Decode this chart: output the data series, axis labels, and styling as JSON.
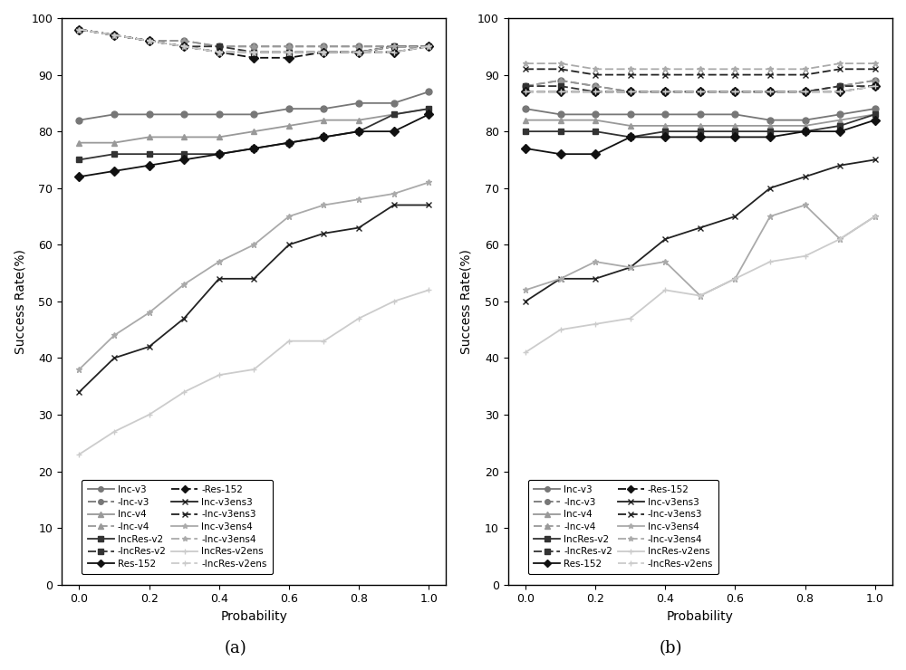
{
  "x": [
    0,
    0.1,
    0.2,
    0.3,
    0.4,
    0.5,
    0.6,
    0.7,
    0.8,
    0.9,
    1.0
  ],
  "plot_a": {
    "solid": {
      "Inc-v3": [
        82,
        83,
        83,
        83,
        83,
        83,
        84,
        84,
        85,
        85,
        87
      ],
      "Inc-v4": [
        78,
        78,
        79,
        79,
        79,
        80,
        81,
        82,
        82,
        83,
        84
      ],
      "IncRes-v2": [
        75,
        76,
        76,
        76,
        76,
        77,
        78,
        79,
        80,
        83,
        84
      ],
      "Res-152": [
        72,
        73,
        74,
        75,
        76,
        77,
        78,
        79,
        80,
        80,
        83
      ],
      "Inc-v3ens3": [
        34,
        40,
        42,
        47,
        54,
        54,
        60,
        62,
        63,
        67,
        67
      ],
      "Inc-v3ens4": [
        38,
        44,
        48,
        53,
        57,
        60,
        65,
        67,
        68,
        69,
        71
      ],
      "IncRes-v2ens": [
        23,
        27,
        30,
        34,
        37,
        38,
        43,
        43,
        47,
        50,
        52
      ]
    },
    "dashed": {
      "-Inc-v3": [
        98,
        97,
        96,
        96,
        95,
        95,
        95,
        95,
        95,
        95,
        95
      ],
      "-Inc-v4": [
        98,
        97,
        96,
        96,
        95,
        95,
        95,
        95,
        95,
        95,
        95
      ],
      "-IncRes-v2": [
        98,
        97,
        96,
        95,
        95,
        94,
        94,
        94,
        94,
        95,
        95
      ],
      "-Res-152": [
        98,
        97,
        96,
        95,
        94,
        93,
        93,
        94,
        94,
        94,
        95
      ],
      "-Inc-v3ens3": [
        98,
        97,
        96,
        95,
        94,
        94,
        94,
        94,
        94,
        95,
        95
      ],
      "-Inc-v3ens4": [
        98,
        97,
        96,
        95,
        94,
        94,
        94,
        94,
        94,
        95,
        95
      ],
      "-IncRes-v2ens": [
        98,
        97,
        96,
        95,
        94,
        94,
        94,
        94,
        94,
        94,
        95
      ]
    }
  },
  "plot_b": {
    "solid": {
      "Inc-v3": [
        84,
        83,
        83,
        83,
        83,
        83,
        83,
        82,
        82,
        83,
        84
      ],
      "Inc-v4": [
        82,
        82,
        82,
        81,
        81,
        81,
        81,
        81,
        81,
        82,
        83
      ],
      "IncRes-v2": [
        80,
        80,
        80,
        79,
        80,
        80,
        80,
        80,
        80,
        81,
        83
      ],
      "Res-152": [
        77,
        76,
        76,
        79,
        79,
        79,
        79,
        79,
        80,
        80,
        82
      ],
      "Inc-v3ens3": [
        50,
        54,
        54,
        56,
        61,
        63,
        65,
        70,
        72,
        74,
        75
      ],
      "Inc-v3ens4": [
        52,
        54,
        57,
        56,
        57,
        51,
        54,
        65,
        67,
        61,
        65
      ],
      "IncRes-v2ens": [
        41,
        45,
        46,
        47,
        52,
        51,
        54,
        57,
        58,
        61,
        65
      ]
    },
    "dashed": {
      "-Inc-v3": [
        88,
        89,
        88,
        87,
        87,
        87,
        87,
        87,
        87,
        88,
        89
      ],
      "-Inc-v4": [
        88,
        89,
        88,
        87,
        87,
        87,
        87,
        87,
        87,
        88,
        89
      ],
      "-IncRes-v2": [
        88,
        88,
        87,
        87,
        87,
        87,
        87,
        87,
        87,
        88,
        88
      ],
      "-Res-152": [
        87,
        87,
        87,
        87,
        87,
        87,
        87,
        87,
        87,
        87,
        88
      ],
      "-Inc-v3ens3": [
        91,
        91,
        90,
        90,
        90,
        90,
        90,
        90,
        90,
        91,
        91
      ],
      "-Inc-v3ens4": [
        92,
        92,
        91,
        91,
        91,
        91,
        91,
        91,
        91,
        92,
        92
      ],
      "-IncRes-v2ens": [
        87,
        87,
        87,
        87,
        87,
        87,
        87,
        87,
        87,
        87,
        88
      ]
    }
  },
  "solid_colors": {
    "Inc-v3": "#777777",
    "Inc-v4": "#999999",
    "IncRes-v2": "#333333",
    "Res-152": "#111111",
    "Inc-v3ens3": "#222222",
    "Inc-v3ens4": "#aaaaaa",
    "IncRes-v2ens": "#cccccc"
  },
  "dashed_colors": {
    "-Inc-v3": "#777777",
    "-Inc-v4": "#999999",
    "-IncRes-v2": "#333333",
    "-Res-152": "#111111",
    "-Inc-v3ens3": "#222222",
    "-Inc-v3ens4": "#aaaaaa",
    "-IncRes-v2ens": "#cccccc"
  },
  "markers_solid": {
    "Inc-v3": "o",
    "Inc-v4": "^",
    "IncRes-v2": "s",
    "Res-152": "D",
    "Inc-v3ens3": "x",
    "Inc-v3ens4": "*",
    "IncRes-v2ens": "+"
  },
  "markers_dashed": {
    "-Inc-v3": "o",
    "-Inc-v4": "^",
    "-IncRes-v2": "s",
    "-Res-152": "D",
    "-Inc-v3ens3": "x",
    "-Inc-v3ens4": "*",
    "-IncRes-v2ens": "+"
  },
  "ylim": [
    0,
    100
  ],
  "yticks": [
    0,
    10,
    20,
    30,
    40,
    50,
    60,
    70,
    80,
    90,
    100
  ],
  "xticks": [
    0,
    0.2,
    0.4,
    0.6,
    0.8,
    1.0
  ],
  "xlabel": "Probability",
  "ylabel": "Success Rate(%)",
  "label_a": "(a)",
  "label_b": "(b)",
  "solid_keys": [
    "Inc-v3",
    "Inc-v4",
    "IncRes-v2",
    "Res-152",
    "Inc-v3ens3",
    "Inc-v3ens4",
    "IncRes-v2ens"
  ],
  "dashed_keys": [
    "-Inc-v3",
    "-Inc-v4",
    "-IncRes-v2",
    "-Res-152",
    "-Inc-v3ens3",
    "-Inc-v3ens4",
    "-IncRes-v2ens"
  ]
}
